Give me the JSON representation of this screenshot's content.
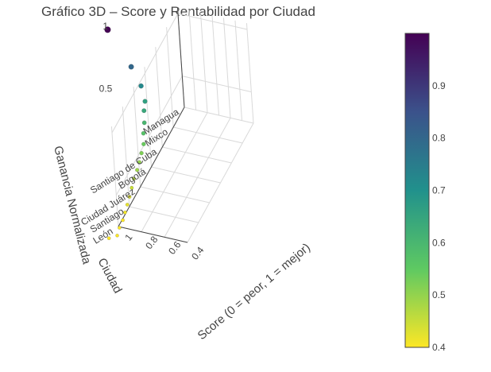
{
  "chart_data": {
    "type": "scatter",
    "title": "Gráfico 3D – Score y Rentabilidad por Ciudad",
    "xlabel": "Ciudad",
    "ylabel": "Score (0 = peor, 1 = mejor)",
    "zlabel": "Ganancia Normalizada",
    "x_tick_labels": [
      "Managua",
      "Mixco",
      "Santiago de Cuba",
      "Bogotá",
      "Ciudad Juárez",
      "Santiago",
      "León"
    ],
    "y_tick_labels": [
      "0.4",
      "0.6",
      "0.8",
      "1"
    ],
    "z_tick_labels": [
      "0.5",
      "1"
    ],
    "colorbar": {
      "colorscale": "Viridis",
      "reversed": true,
      "range": [
        0.4,
        1.0
      ],
      "tick_labels": [
        "0.4",
        "0.5",
        "0.6",
        "0.7",
        "0.8",
        "0.9"
      ],
      "tick_values": [
        0.4,
        0.5,
        0.6,
        0.7,
        0.8,
        0.9
      ]
    },
    "points": [
      {
        "ciudad": "Managua",
        "score": 0.99,
        "ganancia": 1.0
      },
      {
        "ciudad": "Mixco",
        "score": 0.77,
        "ganancia": 0.8
      },
      {
        "ciudad": "Santiago de Cuba",
        "score": 0.66,
        "ganancia": 0.72
      },
      {
        "ciudad": "Bogotá",
        "score": 0.6,
        "ganancia": 0.66
      },
      {
        "ciudad": "Ciudad Juárez",
        "score": 0.58,
        "ganancia": 0.64
      },
      {
        "ciudad": "Santiago",
        "score": 0.55,
        "ganancia": 0.6
      },
      {
        "ciudad": "León",
        "score": 0.53,
        "ganancia": 0.57
      },
      {
        "ciudad": "",
        "score": 0.5,
        "ganancia": 0.54
      },
      {
        "ciudad": "",
        "score": 0.49,
        "ganancia": 0.52
      },
      {
        "ciudad": "",
        "score": 0.48,
        "ganancia": 0.5
      },
      {
        "ciudad": "",
        "score": 0.47,
        "ganancia": 0.49
      },
      {
        "ciudad": "",
        "score": 0.47,
        "ganancia": 0.47
      },
      {
        "ciudad": "",
        "score": 0.46,
        "ganancia": 0.45
      },
      {
        "ciudad": "",
        "score": 0.45,
        "ganancia": 0.43
      },
      {
        "ciudad": "",
        "score": 0.44,
        "ganancia": 0.42
      },
      {
        "ciudad": "",
        "score": 0.43,
        "ganancia": 0.41
      },
      {
        "ciudad": "",
        "score": 0.42,
        "ganancia": 0.4
      },
      {
        "ciudad": "",
        "score": 0.42,
        "ganancia": 0.39
      },
      {
        "ciudad": "",
        "score": 0.41,
        "ganancia": 0.38
      },
      {
        "ciudad": "",
        "score": 0.45,
        "ganancia": 0.4
      }
    ],
    "grid": true
  }
}
